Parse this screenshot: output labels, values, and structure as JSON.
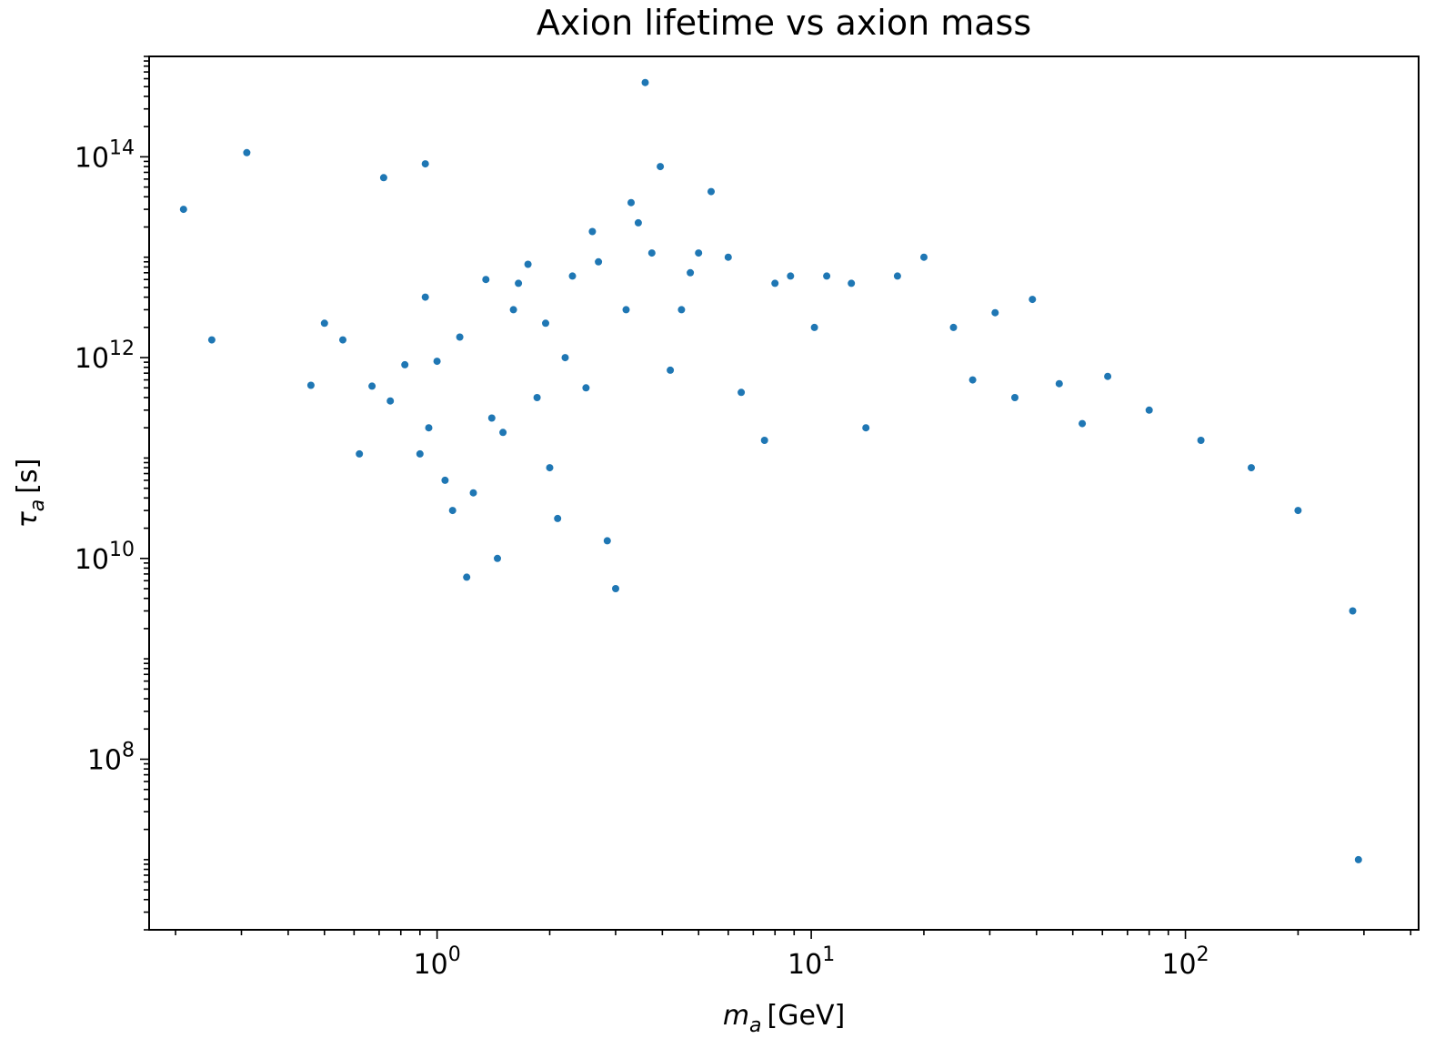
{
  "chart_data": {
    "type": "scatter",
    "title": "Axion lifetime vs axion mass",
    "xlabel": {
      "symbol": "m",
      "subscript": "a",
      "unit": "[GeV]"
    },
    "ylabel": {
      "symbol": "τ",
      "subscript": "a",
      "unit": "[s]"
    },
    "xscale": "log",
    "yscale": "log",
    "xlim": [
      0.17,
      420
    ],
    "ylim": [
      2000000,
      1000000000000000.0
    ],
    "grid": false,
    "legend": "none",
    "marker_color": "#1f77b4",
    "x_ticks": [
      {
        "value": 1,
        "base": "10",
        "exp": "0"
      },
      {
        "value": 10,
        "base": "10",
        "exp": "1"
      },
      {
        "value": 100,
        "base": "10",
        "exp": "2"
      }
    ],
    "y_ticks": [
      {
        "value": 100000000.0,
        "base": "10",
        "exp": "8"
      },
      {
        "value": 10000000000.0,
        "base": "10",
        "exp": "10"
      },
      {
        "value": 1000000000000.0,
        "base": "10",
        "exp": "12"
      },
      {
        "value": 100000000000000.0,
        "base": "10",
        "exp": "14"
      }
    ],
    "series": [
      {
        "points": [
          [
            0.21,
            30000000000000.0
          ],
          [
            0.25,
            1500000000000.0
          ],
          [
            0.31,
            110000000000000.0
          ],
          [
            0.46,
            530000000000.0
          ],
          [
            0.5,
            2200000000000.0
          ],
          [
            0.56,
            1500000000000.0
          ],
          [
            0.62,
            110000000000.0
          ],
          [
            0.67,
            520000000000.0
          ],
          [
            0.72,
            62000000000000.0
          ],
          [
            0.75,
            370000000000.0
          ],
          [
            0.82,
            850000000000.0
          ],
          [
            0.9,
            110000000000.0
          ],
          [
            0.93,
            85000000000000.0
          ],
          [
            0.93,
            4000000000000.0
          ],
          [
            0.95,
            200000000000.0
          ],
          [
            1.0,
            920000000000.0
          ],
          [
            1.05,
            60000000000.0
          ],
          [
            1.1,
            30000000000.0
          ],
          [
            1.15,
            1600000000000.0
          ],
          [
            1.2,
            6500000000.0
          ],
          [
            1.25,
            45000000000.0
          ],
          [
            1.35,
            6000000000000.0
          ],
          [
            1.4,
            250000000000.0
          ],
          [
            1.45,
            10000000000.0
          ],
          [
            1.5,
            180000000000.0
          ],
          [
            1.6,
            3000000000000.0
          ],
          [
            1.65,
            5500000000000.0
          ],
          [
            1.75,
            8500000000000.0
          ],
          [
            1.85,
            400000000000.0
          ],
          [
            1.95,
            2200000000000.0
          ],
          [
            2.0,
            80000000000.0
          ],
          [
            2.1,
            25000000000.0
          ],
          [
            2.2,
            1000000000000.0
          ],
          [
            2.3,
            6500000000000.0
          ],
          [
            2.5,
            500000000000.0
          ],
          [
            2.6,
            18000000000000.0
          ],
          [
            2.7,
            9000000000000.0
          ],
          [
            2.85,
            15000000000.0
          ],
          [
            3.0,
            5000000000.0
          ],
          [
            3.2,
            3000000000000.0
          ],
          [
            3.3,
            35000000000000.0
          ],
          [
            3.45,
            22000000000000.0
          ],
          [
            3.6,
            550000000000000.0
          ],
          [
            3.75,
            11000000000000.0
          ],
          [
            3.95,
            80000000000000.0
          ],
          [
            4.2,
            750000000000.0
          ],
          [
            4.5,
            3000000000000.0
          ],
          [
            4.75,
            7000000000000.0
          ],
          [
            5.0,
            11000000000000.0
          ],
          [
            5.4,
            45000000000000.0
          ],
          [
            6.0,
            10000000000000.0
          ],
          [
            6.5,
            450000000000.0
          ],
          [
            7.5,
            150000000000.0
          ],
          [
            8.0,
            5500000000000.0
          ],
          [
            8.8,
            6500000000000.0
          ],
          [
            10.2,
            2000000000000.0
          ],
          [
            11.0,
            6500000000000.0
          ],
          [
            12.8,
            5500000000000.0
          ],
          [
            14.0,
            200000000000.0
          ],
          [
            17.0,
            6500000000000.0
          ],
          [
            20.0,
            10000000000000.0
          ],
          [
            24.0,
            2000000000000.0
          ],
          [
            27.0,
            600000000000.0
          ],
          [
            31.0,
            2800000000000.0
          ],
          [
            35.0,
            400000000000.0
          ],
          [
            39.0,
            3800000000000.0
          ],
          [
            46.0,
            550000000000.0
          ],
          [
            53.0,
            220000000000.0
          ],
          [
            62.0,
            650000000000.0
          ],
          [
            80.0,
            300000000000.0
          ],
          [
            110.0,
            150000000000.0
          ],
          [
            150.0,
            80000000000.0
          ],
          [
            200.0,
            30000000000.0
          ],
          [
            280.0,
            3000000000.0
          ],
          [
            290.0,
            10000000.0
          ]
        ]
      }
    ]
  }
}
